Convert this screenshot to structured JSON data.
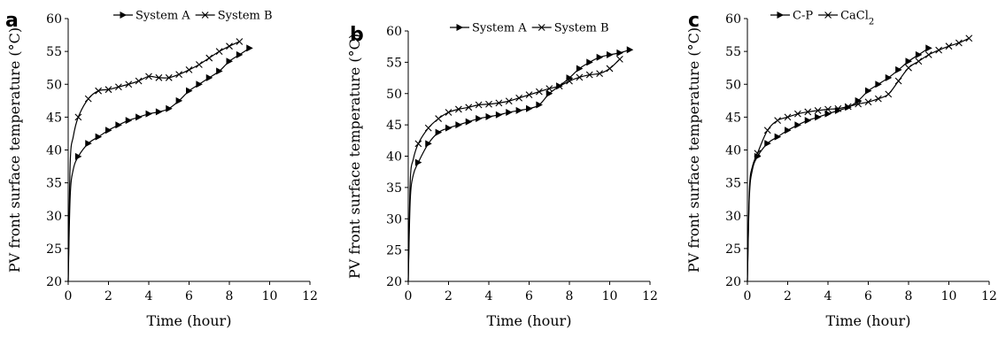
{
  "chart_data": [
    {
      "panel": "a",
      "type": "line",
      "xlabel": "Time (hour)",
      "ylabel": "PV front surface temperature (°C)",
      "xlim": [
        0,
        12
      ],
      "ylim": [
        20,
        60
      ],
      "xticks": [
        "0",
        "2",
        "4",
        "6",
        "8",
        "10",
        "12"
      ],
      "yticks": [
        "20",
        "25",
        "30",
        "35",
        "40",
        "45",
        "50",
        "55",
        "60"
      ],
      "grid": false,
      "legend": "top-center",
      "series": [
        {
          "name": "System A",
          "marker": "triangle",
          "x": [
            0,
            0.1,
            0.25,
            0.5,
            1,
            1.5,
            2,
            2.5,
            3,
            3.5,
            4,
            4.5,
            5,
            5.5,
            6,
            6.5,
            7,
            7.5,
            8,
            8.5,
            9
          ],
          "y": [
            20,
            33,
            37,
            39,
            41,
            42,
            43,
            43.8,
            44.5,
            45,
            45.5,
            45.8,
            46.3,
            47.5,
            49,
            50,
            51,
            52,
            53.5,
            54.5,
            55.5
          ]
        },
        {
          "name": "System B",
          "marker": "x",
          "x": [
            0,
            0.1,
            0.25,
            0.5,
            1,
            1.5,
            2,
            2.5,
            3,
            3.5,
            4,
            4.5,
            5,
            5.5,
            6,
            6.5,
            7,
            7.5,
            8,
            8.5
          ],
          "y": [
            20,
            38,
            42,
            45,
            47.8,
            49,
            49.2,
            49.6,
            50,
            50.5,
            51.2,
            51,
            51,
            51.5,
            52.2,
            53,
            54,
            55,
            55.8,
            56.5
          ]
        }
      ]
    },
    {
      "panel": "b",
      "type": "line",
      "xlabel": "Time (hour)",
      "ylabel": "PV front surface temperature (°C)",
      "xlim": [
        0,
        12
      ],
      "ylim": [
        20,
        60
      ],
      "xticks": [
        "0",
        "2",
        "4",
        "6",
        "8",
        "10",
        "12"
      ],
      "yticks": [
        "20",
        "25",
        "30",
        "35",
        "40",
        "45",
        "50",
        "55",
        "60"
      ],
      "grid": false,
      "legend": "top-center",
      "series": [
        {
          "name": "System A",
          "marker": "triangle",
          "x": [
            0,
            0.1,
            0.25,
            0.5,
            1,
            1.5,
            2,
            2.5,
            3,
            3.5,
            4,
            4.5,
            5,
            5.5,
            6,
            6.5,
            7,
            7.5,
            8,
            8.5,
            9,
            9.5,
            10,
            10.5,
            11
          ],
          "y": [
            20,
            33,
            37,
            39,
            42,
            43.8,
            44.5,
            45,
            45.5,
            46,
            46.3,
            46.6,
            47,
            47.3,
            47.6,
            48.2,
            50,
            51.2,
            52.5,
            54,
            55,
            55.8,
            56.2,
            56.5,
            57
          ]
        },
        {
          "name": "System B",
          "marker": "x",
          "x": [
            0,
            0.1,
            0.25,
            0.5,
            1,
            1.5,
            2,
            2.5,
            3,
            3.5,
            4,
            4.5,
            5,
            5.5,
            6,
            6.5,
            7,
            7.5,
            8,
            8.5,
            9,
            9.5,
            10,
            10.5
          ],
          "y": [
            20,
            36,
            39.5,
            42,
            44.5,
            46,
            47,
            47.5,
            47.8,
            48.2,
            48.3,
            48.5,
            48.8,
            49.3,
            49.8,
            50.3,
            50.8,
            51.2,
            52,
            52.6,
            53,
            53.2,
            54,
            55.5
          ]
        }
      ]
    },
    {
      "panel": "c",
      "type": "line",
      "xlabel": "Time (hour)",
      "ylabel": "PV front surface temperature (°C)",
      "xlim": [
        0,
        12
      ],
      "ylim": [
        20,
        60
      ],
      "xticks": [
        "0",
        "2",
        "4",
        "6",
        "8",
        "10",
        "12"
      ],
      "yticks": [
        "20",
        "25",
        "30",
        "35",
        "40",
        "45",
        "50",
        "55",
        "60"
      ],
      "grid": false,
      "legend": "top-center",
      "series": [
        {
          "name": "C-P",
          "marker": "triangle",
          "x": [
            0,
            0.1,
            0.25,
            0.5,
            1,
            1.5,
            2,
            2.5,
            3,
            3.5,
            4,
            4.5,
            5,
            5.5,
            6,
            6.5,
            7,
            7.5,
            8,
            8.5,
            9
          ],
          "y": [
            20,
            33,
            37,
            39,
            41,
            42,
            43,
            43.8,
            44.5,
            45,
            45.5,
            46,
            46.5,
            47.5,
            49,
            50,
            51,
            52.2,
            53.5,
            54.5,
            55.5
          ]
        },
        {
          "name": "CaCl2",
          "marker": "x",
          "x": [
            0,
            0.1,
            0.25,
            0.5,
            1,
            1.5,
            2,
            2.5,
            3,
            3.5,
            4,
            4.5,
            5,
            5.5,
            6,
            6.5,
            7,
            7.5,
            8,
            8.5,
            9,
            9.5,
            10,
            10.5,
            11
          ],
          "y": [
            20,
            34,
            37.5,
            39.5,
            43,
            44.5,
            45,
            45.5,
            45.8,
            46,
            46.2,
            46.3,
            46.6,
            47,
            47.3,
            47.8,
            48.5,
            50.5,
            52.5,
            53.5,
            54.5,
            55.2,
            55.8,
            56.3,
            57
          ]
        }
      ]
    }
  ]
}
